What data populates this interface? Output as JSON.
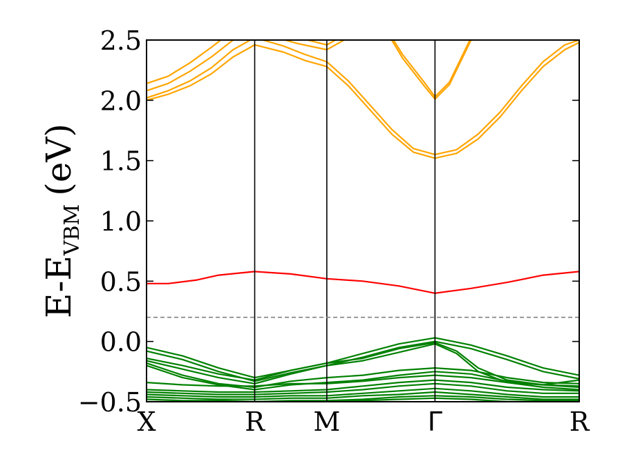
{
  "chart_data": {
    "type": "line",
    "ylabel_main": "E-E",
    "ylabel_sub": "VBM",
    "ylabel_unit": "(eV)",
    "ylim": [
      -0.5,
      2.5
    ],
    "yticks": [
      -0.5,
      0.0,
      0.5,
      1.0,
      1.5,
      2.0,
      2.5
    ],
    "ytick_labels": [
      "−0.5",
      "0.0",
      "0.5",
      "1.0",
      "1.5",
      "2.0",
      "2.5"
    ],
    "xlim": [
      0,
      6
    ],
    "kpoints": [
      {
        "label": "X",
        "x": 0
      },
      {
        "label": "R",
        "x": 1.5
      },
      {
        "label": "M",
        "x": 2.5
      },
      {
        "label": "Γ",
        "x": 4
      },
      {
        "label": "R",
        "x": 6
      }
    ],
    "fermi_level": 0.2,
    "colors": {
      "conduction": "#FFA500",
      "defect": "#FF0000",
      "valence": "#008000",
      "fermi": "#808080",
      "kline": "#000000"
    },
    "series": [
      {
        "group": "defect",
        "x": [
          0,
          0.3,
          0.7,
          1.0,
          1.5,
          2.0,
          2.5,
          3.0,
          3.5,
          4.0,
          4.5,
          5.0,
          5.5,
          6.0
        ],
        "y": [
          0.48,
          0.48,
          0.51,
          0.55,
          0.58,
          0.56,
          0.52,
          0.5,
          0.46,
          0.4,
          0.44,
          0.49,
          0.55,
          0.58
        ]
      },
      {
        "group": "conduction",
        "x": [
          0,
          0.3,
          0.6,
          0.9,
          1.2,
          1.5,
          1.9,
          2.2,
          2.5,
          2.8,
          3.1,
          3.4,
          3.7,
          4.0,
          4.3,
          4.6,
          4.9,
          5.2,
          5.5,
          5.8,
          6.0
        ],
        "y": [
          2.0,
          2.05,
          2.12,
          2.22,
          2.36,
          2.46,
          2.4,
          2.33,
          2.28,
          2.12,
          1.92,
          1.72,
          1.57,
          1.52,
          1.56,
          1.68,
          1.86,
          2.08,
          2.28,
          2.42,
          2.48
        ]
      },
      {
        "group": "conduction",
        "x": [
          0,
          0.3,
          0.6,
          0.9,
          1.2,
          1.5,
          1.9,
          2.2,
          2.5,
          2.8,
          3.1,
          3.4,
          3.7,
          4.0,
          4.3,
          4.6,
          4.9,
          5.2,
          5.5,
          5.8,
          6.0
        ],
        "y": [
          2.02,
          2.08,
          2.16,
          2.27,
          2.42,
          2.52,
          2.45,
          2.38,
          2.32,
          2.16,
          1.96,
          1.76,
          1.6,
          1.55,
          1.59,
          1.72,
          1.9,
          2.12,
          2.32,
          2.46,
          2.5
        ]
      },
      {
        "group": "conduction",
        "x": [
          0,
          0.3,
          0.6,
          0.9,
          1.2,
          1.5
        ],
        "y": [
          2.08,
          2.14,
          2.24,
          2.36,
          2.5,
          2.58
        ]
      },
      {
        "group": "conduction",
        "x": [
          0,
          0.3,
          0.6,
          0.9,
          1.2,
          1.5
        ],
        "y": [
          2.14,
          2.2,
          2.31,
          2.44,
          2.58,
          2.66
        ]
      },
      {
        "group": "conduction",
        "x": [
          1.5,
          1.8,
          2.1,
          2.5,
          2.8
        ],
        "y": [
          2.55,
          2.52,
          2.47,
          2.42,
          2.52
        ]
      },
      {
        "group": "conduction",
        "x": [
          1.5,
          1.8,
          2.1,
          2.5,
          2.8
        ],
        "y": [
          2.6,
          2.56,
          2.52,
          2.46,
          2.56
        ]
      },
      {
        "group": "conduction",
        "x": [
          3.3,
          3.55,
          3.85,
          4.0,
          4.2,
          4.5
        ],
        "y": [
          2.62,
          2.38,
          2.15,
          2.03,
          2.15,
          2.52
        ]
      },
      {
        "group": "conduction",
        "x": [
          3.3,
          3.55,
          3.85,
          4.0,
          4.2,
          4.5
        ],
        "y": [
          2.6,
          2.35,
          2.12,
          2.01,
          2.13,
          2.5
        ]
      },
      {
        "group": "valence",
        "x": [
          0,
          0.5,
          1.0,
          1.5,
          2.0,
          2.5,
          3.0,
          3.5,
          4.0,
          4.5,
          5.0,
          5.5,
          6.0
        ],
        "y": [
          -0.05,
          -0.12,
          -0.22,
          -0.3,
          -0.24,
          -0.18,
          -0.1,
          -0.02,
          0.03,
          -0.03,
          -0.12,
          -0.22,
          -0.28
        ]
      },
      {
        "group": "valence",
        "x": [
          0,
          0.5,
          1.0,
          1.5,
          2.0,
          2.5,
          3.0,
          3.5,
          4.0,
          4.5,
          5.0,
          5.5,
          6.0
        ],
        "y": [
          -0.08,
          -0.15,
          -0.25,
          -0.33,
          -0.26,
          -0.2,
          -0.13,
          -0.05,
          0.0,
          -0.06,
          -0.15,
          -0.25,
          -0.31
        ]
      },
      {
        "group": "valence",
        "x": [
          0,
          0.5,
          1.0,
          1.5,
          2.0,
          2.5,
          3.0,
          3.5,
          4.0,
          4.3,
          4.6,
          5.0,
          5.5,
          6.0
        ],
        "y": [
          -0.14,
          -0.2,
          -0.27,
          -0.32,
          -0.24,
          -0.18,
          -0.14,
          -0.06,
          -0.01,
          -0.08,
          -0.22,
          -0.32,
          -0.36,
          -0.38
        ]
      },
      {
        "group": "valence",
        "x": [
          0,
          0.5,
          1.0,
          1.5,
          2.0,
          2.5,
          3.0,
          3.5,
          4.0,
          4.3,
          4.6,
          5.0,
          5.5,
          6.0
        ],
        "y": [
          -0.16,
          -0.23,
          -0.3,
          -0.35,
          -0.27,
          -0.2,
          -0.16,
          -0.09,
          -0.02,
          -0.1,
          -0.25,
          -0.34,
          -0.38,
          -0.4
        ]
      },
      {
        "group": "valence",
        "x": [
          0,
          0.5,
          1.0,
          1.5,
          2.0,
          2.5,
          3.0,
          3.5,
          4.0,
          4.5,
          5.0,
          5.5,
          6.0
        ],
        "y": [
          -0.18,
          -0.28,
          -0.35,
          -0.38,
          -0.33,
          -0.3,
          -0.28,
          -0.24,
          -0.22,
          -0.24,
          -0.3,
          -0.34,
          -0.35
        ]
      },
      {
        "group": "valence",
        "x": [
          0,
          0.5,
          1.0,
          1.5,
          2.0,
          2.5,
          3.0,
          3.5,
          4.0,
          4.5,
          5.0,
          5.5,
          6.0
        ],
        "y": [
          -0.2,
          -0.3,
          -0.36,
          -0.4,
          -0.36,
          -0.34,
          -0.32,
          -0.28,
          -0.25,
          -0.27,
          -0.33,
          -0.36,
          -0.37
        ]
      },
      {
        "group": "valence",
        "x": [
          0,
          0.5,
          1.0,
          1.5,
          2.0,
          2.5,
          3.0,
          3.5,
          4.0,
          4.5,
          5.0,
          5.5,
          6.0
        ],
        "y": [
          -0.34,
          -0.36,
          -0.37,
          -0.37,
          -0.35,
          -0.35,
          -0.33,
          -0.3,
          -0.28,
          -0.3,
          -0.34,
          -0.36,
          -0.32
        ]
      },
      {
        "group": "valence",
        "x": [
          0,
          0.5,
          1.0,
          1.5,
          2.0,
          2.5,
          3.0,
          3.5,
          4.0,
          4.5,
          5.0,
          5.5,
          6.0
        ],
        "y": [
          -0.4,
          -0.41,
          -0.42,
          -0.42,
          -0.41,
          -0.4,
          -0.37,
          -0.34,
          -0.32,
          -0.34,
          -0.38,
          -0.4,
          -0.41
        ]
      },
      {
        "group": "valence",
        "x": [
          0,
          0.5,
          1.0,
          1.5,
          2.0,
          2.5,
          3.0,
          3.5,
          4.0,
          4.5,
          5.0,
          5.5,
          6.0
        ],
        "y": [
          -0.42,
          -0.43,
          -0.44,
          -0.44,
          -0.43,
          -0.42,
          -0.4,
          -0.37,
          -0.35,
          -0.37,
          -0.41,
          -0.43,
          -0.43
        ]
      },
      {
        "group": "valence",
        "x": [
          0,
          0.5,
          1.0,
          1.5,
          2.0,
          2.5,
          3.0,
          3.5,
          4.0,
          4.5,
          5.0,
          5.5,
          6.0
        ],
        "y": [
          -0.44,
          -0.45,
          -0.46,
          -0.46,
          -0.45,
          -0.45,
          -0.43,
          -0.41,
          -0.39,
          -0.41,
          -0.44,
          -0.46,
          -0.46
        ]
      },
      {
        "group": "valence",
        "x": [
          0,
          0.5,
          1.0,
          1.5,
          2.0,
          2.5,
          3.0,
          3.5,
          4.0,
          4.5,
          5.0,
          5.5,
          6.0
        ],
        "y": [
          -0.46,
          -0.47,
          -0.48,
          -0.48,
          -0.47,
          -0.47,
          -0.45,
          -0.44,
          -0.42,
          -0.44,
          -0.46,
          -0.48,
          -0.48
        ]
      },
      {
        "group": "valence",
        "x": [
          0,
          0.5,
          1.0,
          1.5,
          2.0,
          2.5,
          3.0,
          3.5,
          4.0,
          4.5,
          5.0,
          5.5,
          6.0
        ],
        "y": [
          -0.48,
          -0.49,
          -0.49,
          -0.5,
          -0.49,
          -0.49,
          -0.48,
          -0.46,
          -0.45,
          -0.46,
          -0.48,
          -0.49,
          -0.49
        ]
      },
      {
        "group": "valence",
        "x": [
          0,
          0.5,
          1.0,
          1.5,
          2.0,
          2.5,
          3.0,
          3.5,
          4.0,
          4.5,
          5.0,
          5.5,
          6.0
        ],
        "y": [
          -0.5,
          -0.5,
          -0.5,
          -0.5,
          -0.5,
          -0.5,
          -0.49,
          -0.48,
          -0.47,
          -0.48,
          -0.5,
          -0.5,
          -0.5
        ]
      }
    ]
  }
}
